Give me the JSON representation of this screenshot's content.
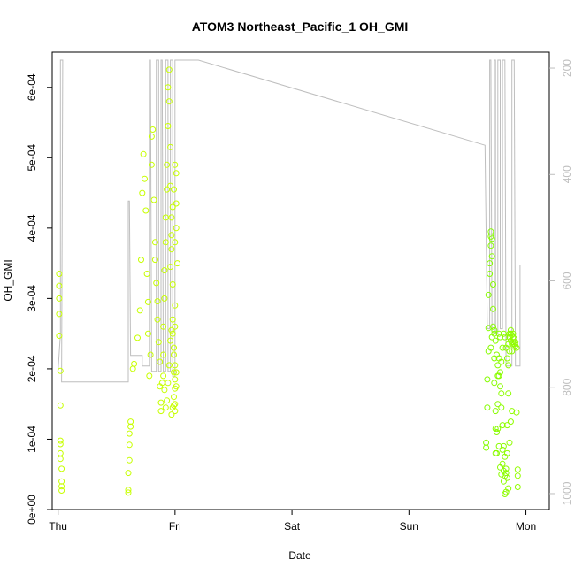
{
  "chart_data": {
    "type": "scatter",
    "title": "ATOM3 Northeast_Pacific_1 OH_GMI",
    "xlabel": "Date",
    "ylabel": "OH_GMI",
    "x_unit": "days",
    "xlim": [
      -0.05,
      4.2
    ],
    "ylim": [
      0,
      0.00065
    ],
    "y_ticks": [
      0,
      0.0001,
      0.0002,
      0.0003,
      0.0004,
      0.0005,
      0.0006
    ],
    "y_tick_labels": [
      "0e+00",
      "1e-04",
      "2e-04",
      "3e-04",
      "4e-04",
      "5e-04",
      "6e-04"
    ],
    "x_ticks": [
      0,
      1,
      2,
      3,
      4
    ],
    "x_tick_labels": [
      "Thu",
      "Fri",
      "Sat",
      "Sun",
      "Mon"
    ],
    "y2_label": "",
    "y2_lim": [
      1030,
      170
    ],
    "y2_ticks": [
      200,
      400,
      600,
      800,
      1000
    ],
    "y2_tick_labels": [
      "200",
      "400",
      "600",
      "800",
      "1000"
    ],
    "colors": {
      "axis": "#000000",
      "pressure_line": "#bebebe",
      "y2_axis": "#bebebe",
      "point_low": "#7cfc00",
      "point_high": "#d4ff00"
    },
    "series": [
      {
        "type": "scatter",
        "points": [
          [
            0.01,
            0.000335
          ],
          [
            0.01,
            0.000318
          ],
          [
            0.01,
            0.0003
          ],
          [
            0.01,
            0.000278
          ],
          [
            0.01,
            0.000247
          ],
          [
            0.02,
            0.000197
          ],
          [
            0.02,
            0.000148
          ],
          [
            0.02,
            9.8e-05
          ],
          [
            0.02,
            9.3e-05
          ],
          [
            0.02,
            8e-05
          ],
          [
            0.02,
            7.2e-05
          ],
          [
            0.03,
            5.8e-05
          ],
          [
            0.03,
            4e-05
          ],
          [
            0.03,
            3.3e-05
          ],
          [
            0.03,
            2.7e-05
          ],
          [
            0.62,
            0.000125
          ],
          [
            0.62,
            0.000118
          ],
          [
            0.61,
            0.000108
          ],
          [
            0.61,
            9.2e-05
          ],
          [
            0.61,
            7e-05
          ],
          [
            0.6,
            5.2e-05
          ],
          [
            0.6,
            2.8e-05
          ],
          [
            0.6,
            2.4e-05
          ],
          [
            0.64,
            0.0002
          ],
          [
            0.65,
            0.000207
          ],
          [
            0.68,
            0.000244
          ],
          [
            0.7,
            0.000283
          ],
          [
            0.71,
            0.000355
          ],
          [
            0.72,
            0.00045
          ],
          [
            0.73,
            0.000505
          ],
          [
            0.74,
            0.00047
          ],
          [
            0.75,
            0.000425
          ],
          [
            0.76,
            0.000335
          ],
          [
            0.77,
            0.000295
          ],
          [
            0.77,
            0.00025
          ],
          [
            0.78,
            0.00019
          ],
          [
            0.79,
            0.00022
          ],
          [
            0.8,
            0.00049
          ],
          [
            0.8,
            0.00053
          ],
          [
            0.81,
            0.00054
          ],
          [
            0.82,
            0.00044
          ],
          [
            0.83,
            0.00038
          ],
          [
            0.83,
            0.000355
          ],
          [
            0.84,
            0.000322
          ],
          [
            0.85,
            0.000296
          ],
          [
            0.85,
            0.00027
          ],
          [
            0.86,
            0.000238
          ],
          [
            0.87,
            0.00021
          ],
          [
            0.87,
            0.000175
          ],
          [
            0.88,
            0.000152
          ],
          [
            0.88,
            0.00014
          ],
          [
            0.89,
            0.00018
          ],
          [
            0.9,
            0.00022
          ],
          [
            0.9,
            0.00026
          ],
          [
            0.91,
            0.0003
          ],
          [
            0.91,
            0.00034
          ],
          [
            0.92,
            0.00038
          ],
          [
            0.92,
            0.000415
          ],
          [
            0.93,
            0.000455
          ],
          [
            0.93,
            0.00049
          ],
          [
            0.94,
            0.000545
          ],
          [
            0.94,
            0.0006
          ],
          [
            0.95,
            0.000625
          ],
          [
            0.95,
            0.00058
          ],
          [
            0.96,
            0.000515
          ],
          [
            0.96,
            0.00046
          ],
          [
            0.97,
            0.000415
          ],
          [
            0.97,
            0.00037
          ],
          [
            0.98,
            0.00032
          ],
          [
            0.98,
            0.00027
          ],
          [
            0.99,
            0.00023
          ],
          [
            0.99,
            0.000195
          ],
          [
            0.99,
            0.00016
          ],
          [
            1.0,
            0.00015
          ],
          [
            1.0,
            0.000172
          ],
          [
            1.0,
            0.000185
          ],
          [
            1.0,
            0.000205
          ],
          [
            0.99,
            0.00022
          ],
          [
            0.98,
            0.00025
          ],
          [
            0.97,
            0.000255
          ],
          [
            0.96,
            0.00024
          ],
          [
            0.95,
            0.000205
          ],
          [
            0.94,
            0.00018
          ],
          [
            0.93,
            0.000155
          ],
          [
            0.92,
            0.000145
          ],
          [
            0.91,
            0.00017
          ],
          [
            0.9,
            0.00019
          ],
          [
            1.0,
            0.00049
          ],
          [
            0.99,
            0.000455
          ],
          [
            0.98,
            0.00043
          ],
          [
            0.97,
            0.00039
          ],
          [
            0.96,
            0.000345
          ],
          [
            1.01,
            0.0004
          ],
          [
            1.0,
            0.00038
          ],
          [
            1.01,
            0.000435
          ],
          [
            1.01,
            0.000478
          ],
          [
            1.0,
            0.00029
          ],
          [
            1.0,
            0.00026
          ],
          [
            1.01,
            0.000195
          ],
          [
            1.01,
            0.000175
          ],
          [
            1.02,
            0.00035
          ],
          [
            0.98,
            0.000145
          ],
          [
            0.99,
            0.000148
          ],
          [
            1.0,
            0.00014
          ],
          [
            0.97,
            0.000135
          ],
          [
            3.66,
            9.5e-05
          ],
          [
            3.66,
            8.8e-05
          ],
          [
            3.67,
            0.000145
          ],
          [
            3.67,
            0.000185
          ],
          [
            3.68,
            0.000225
          ],
          [
            3.68,
            0.000258
          ],
          [
            3.68,
            0.000305
          ],
          [
            3.69,
            0.000335
          ],
          [
            3.69,
            0.00035
          ],
          [
            3.7,
            0.000375
          ],
          [
            3.7,
            0.000388
          ],
          [
            3.7,
            0.000395
          ],
          [
            3.71,
            0.000385
          ],
          [
            3.71,
            0.00036
          ],
          [
            3.72,
            0.00032
          ],
          [
            3.72,
            0.000285
          ],
          [
            3.73,
            0.00025
          ],
          [
            3.73,
            0.000215
          ],
          [
            3.73,
            0.00018
          ],
          [
            3.74,
            0.00014
          ],
          [
            3.74,
            0.000115
          ],
          [
            3.74,
            8e-05
          ],
          [
            3.75,
            8e-05
          ],
          [
            3.75,
            0.00011
          ],
          [
            3.76,
            0.00015
          ],
          [
            3.76,
            0.00019
          ],
          [
            3.77,
            0.000215
          ],
          [
            3.77,
            0.00025
          ],
          [
            3.78,
            0.000245
          ],
          [
            3.78,
            0.000195
          ],
          [
            3.79,
            0.000165
          ],
          [
            3.79,
            0.000145
          ],
          [
            3.8,
            0.00012
          ],
          [
            3.8,
            8.5e-05
          ],
          [
            3.81,
            5.5e-05
          ],
          [
            3.81,
            4e-05
          ],
          [
            3.82,
            4.8e-05
          ],
          [
            3.82,
            2.2e-05
          ],
          [
            3.83,
            2.5e-05
          ],
          [
            3.83,
            5.2e-05
          ],
          [
            3.84,
            8e-05
          ],
          [
            3.84,
            0.00012
          ],
          [
            3.85,
            0.000165
          ],
          [
            3.85,
            0.000205
          ],
          [
            3.86,
            0.000225
          ],
          [
            3.86,
            0.000245
          ],
          [
            3.87,
            0.00025
          ],
          [
            3.87,
            0.00024
          ],
          [
            3.88,
            0.000235
          ],
          [
            3.88,
            0.000225
          ],
          [
            3.89,
            0.000245
          ],
          [
            3.89,
            0.00025
          ],
          [
            3.9,
            0.000243
          ],
          [
            3.9,
            0.000235
          ],
          [
            3.91,
            0.000233
          ],
          [
            3.91,
            0.000238
          ],
          [
            3.92,
            0.00023
          ],
          [
            3.92,
            0.000138
          ],
          [
            3.93,
            5.7e-05
          ],
          [
            3.93,
            4.8e-05
          ],
          [
            3.93,
            3.2e-05
          ],
          [
            3.7,
            0.00023
          ],
          [
            3.71,
            0.000245
          ],
          [
            3.72,
            0.00026
          ],
          [
            3.73,
            0.000255
          ],
          [
            3.74,
            0.00024
          ],
          [
            3.75,
            0.00022
          ],
          [
            3.76,
            0.000205
          ],
          [
            3.77,
            0.00019
          ],
          [
            3.78,
            0.000175
          ],
          [
            3.79,
            0.00021
          ],
          [
            3.8,
            0.00023
          ],
          [
            3.81,
            0.00025
          ],
          [
            3.82,
            0.000245
          ],
          [
            3.83,
            0.00023
          ],
          [
            3.84,
            0.000215
          ],
          [
            3.85,
            0.000235
          ],
          [
            3.86,
            0.00025
          ],
          [
            3.87,
            0.000255
          ],
          [
            3.88,
            0.000248
          ],
          [
            3.89,
            0.000238
          ],
          [
            3.76,
            0.000115
          ],
          [
            3.77,
            9e-05
          ],
          [
            3.78,
            6e-05
          ],
          [
            3.79,
            5e-05
          ],
          [
            3.8,
            6.5e-05
          ],
          [
            3.81,
            9e-05
          ],
          [
            3.82,
            7.5e-05
          ],
          [
            3.83,
            5.8e-05
          ],
          [
            3.84,
            4.5e-05
          ],
          [
            3.85,
            3e-05
          ],
          [
            3.86,
            9.5e-05
          ],
          [
            3.87,
            0.000125
          ],
          [
            3.88,
            0.00014
          ]
        ]
      },
      {
        "type": "line",
        "name": "",
        "axis": "y2",
        "points": [
          [
            0.0,
            770
          ],
          [
            0.02,
            700
          ],
          [
            0.02,
            185
          ],
          [
            0.04,
            185
          ],
          [
            0.03,
            790
          ],
          [
            0.6,
            790
          ],
          [
            0.6,
            450
          ],
          [
            0.61,
            450
          ],
          [
            0.62,
            740
          ],
          [
            0.72,
            740
          ],
          [
            0.72,
            760
          ],
          [
            0.78,
            760
          ],
          [
            0.78,
            185
          ],
          [
            0.79,
            185
          ],
          [
            0.8,
            770
          ],
          [
            0.84,
            770
          ],
          [
            0.84,
            185
          ],
          [
            0.86,
            185
          ],
          [
            0.86,
            770
          ],
          [
            0.88,
            770
          ],
          [
            0.88,
            185
          ],
          [
            0.89,
            185
          ],
          [
            0.9,
            770
          ],
          [
            0.92,
            770
          ],
          [
            0.92,
            185
          ],
          [
            0.94,
            185
          ],
          [
            0.94,
            770
          ],
          [
            0.96,
            770
          ],
          [
            0.96,
            185
          ],
          [
            0.98,
            185
          ],
          [
            0.98,
            780
          ],
          [
            1.0,
            780
          ],
          [
            1.0,
            185
          ],
          [
            1.2,
            185
          ],
          [
            3.65,
            345
          ],
          [
            3.67,
            690
          ],
          [
            3.69,
            690
          ],
          [
            3.69,
            185
          ],
          [
            3.7,
            185
          ],
          [
            3.71,
            700
          ],
          [
            3.73,
            700
          ],
          [
            3.73,
            185
          ],
          [
            3.74,
            185
          ],
          [
            3.74,
            700
          ],
          [
            3.76,
            700
          ],
          [
            3.76,
            185
          ],
          [
            3.78,
            185
          ],
          [
            3.78,
            690
          ],
          [
            3.8,
            690
          ],
          [
            3.8,
            185
          ],
          [
            3.82,
            185
          ],
          [
            3.83,
            760
          ],
          [
            3.88,
            760
          ],
          [
            3.88,
            185
          ],
          [
            3.9,
            185
          ],
          [
            3.91,
            760
          ],
          [
            3.95,
            760
          ],
          [
            3.95,
            570
          ]
        ]
      }
    ]
  }
}
